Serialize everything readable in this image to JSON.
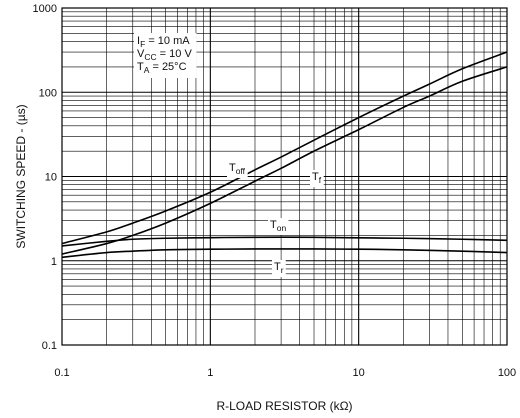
{
  "chart_data": {
    "type": "line",
    "xscale": "log",
    "yscale": "log",
    "xlim": [
      0.1,
      100
    ],
    "ylim": [
      0.1,
      1000
    ],
    "xlabel": "R-LOAD RESISTOR (kΩ)",
    "ylabel": "SWITCHING SPEED - (µs)",
    "xticks": [
      "0.1",
      "1",
      "10",
      "100"
    ],
    "yticks": [
      "0.1",
      "1",
      "10",
      "100",
      "1000"
    ],
    "grid": true,
    "conditions": [
      {
        "main": "I",
        "sub": "F",
        "rest": " = 10 mA"
      },
      {
        "main": "V",
        "sub": "CC",
        "rest": " = 10 V"
      },
      {
        "main": "T",
        "sub": "A",
        "rest": " = 25°C"
      }
    ],
    "series": [
      {
        "main": "T",
        "sub": "off",
        "x": [
          0.1,
          0.2,
          0.3,
          0.5,
          1,
          2,
          3,
          5,
          10,
          20,
          30,
          50,
          100
        ],
        "y": [
          1.6,
          2.2,
          2.8,
          3.9,
          6.5,
          12,
          17,
          27,
          50,
          90,
          125,
          190,
          300
        ]
      },
      {
        "main": "T",
        "sub": "f",
        "x": [
          0.1,
          0.2,
          0.3,
          0.5,
          1,
          2,
          3,
          5,
          10,
          20,
          30,
          50,
          100
        ],
        "y": [
          1.2,
          1.6,
          2.0,
          2.8,
          4.8,
          8.8,
          12.5,
          20,
          36,
          66,
          90,
          135,
          200
        ]
      },
      {
        "main": "T",
        "sub": "on",
        "x": [
          0.1,
          0.2,
          0.3,
          0.5,
          1,
          2,
          5,
          10,
          20,
          50,
          100
        ],
        "y": [
          1.5,
          1.7,
          1.8,
          1.85,
          1.88,
          1.9,
          1.9,
          1.87,
          1.85,
          1.8,
          1.75
        ]
      },
      {
        "main": "T",
        "sub": "r",
        "x": [
          0.1,
          0.2,
          0.3,
          0.5,
          1,
          2,
          5,
          10,
          20,
          50,
          100
        ],
        "y": [
          1.1,
          1.25,
          1.3,
          1.35,
          1.37,
          1.38,
          1.38,
          1.37,
          1.35,
          1.3,
          1.25
        ]
      }
    ]
  }
}
